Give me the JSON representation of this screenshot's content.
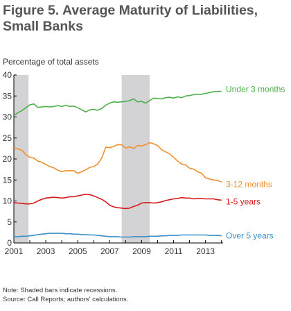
{
  "title_line1": "Figure 5. Average Maturity of Liabilities,",
  "title_line2": "Small Banks",
  "notes": [
    "Note: Shaded bars indicate recessions.",
    "Source: Call Reports; authors' calculations."
  ],
  "chart_data": {
    "type": "line",
    "title": "Figure 5. Average Maturity of Liabilities, Small Banks",
    "ylabel": "Percentage of total assets",
    "xlabel": "",
    "xlim": [
      2001,
      2014.1
    ],
    "ylim": [
      0,
      40
    ],
    "yticks": [
      0,
      5,
      10,
      15,
      20,
      25,
      30,
      35,
      40
    ],
    "xticks": [
      2001,
      2003,
      2005,
      2007,
      2009,
      2011,
      2013
    ],
    "grid": false,
    "legend": "inline labels at right end of each series",
    "recessions": [
      [
        2001.0,
        2001.92
      ],
      [
        2007.75,
        2009.5
      ]
    ],
    "series": [
      {
        "name": "Under 3 months",
        "color": "#4daf4a",
        "label_y": 36.6,
        "x": [
          2001.0,
          2001.25,
          2001.5,
          2001.75,
          2002.0,
          2002.25,
          2002.5,
          2002.75,
          2003.0,
          2003.25,
          2003.5,
          2003.75,
          2004.0,
          2004.25,
          2004.5,
          2004.75,
          2005.0,
          2005.25,
          2005.5,
          2005.75,
          2006.0,
          2006.25,
          2006.5,
          2006.75,
          2007.0,
          2007.25,
          2007.5,
          2007.75,
          2008.0,
          2008.25,
          2008.5,
          2008.75,
          2009.0,
          2009.25,
          2009.5,
          2009.75,
          2010.0,
          2010.25,
          2010.5,
          2010.75,
          2011.0,
          2011.25,
          2011.5,
          2011.75,
          2012.0,
          2012.25,
          2012.5,
          2012.75,
          2013.0,
          2013.25,
          2013.5,
          2013.75,
          2014.0
        ],
        "values": [
          30.4,
          31.0,
          31.5,
          32.2,
          32.9,
          33.1,
          32.3,
          32.4,
          32.5,
          32.4,
          32.5,
          32.7,
          32.5,
          32.8,
          32.5,
          32.6,
          32.2,
          31.7,
          31.2,
          31.7,
          31.8,
          31.6,
          32.0,
          32.8,
          33.3,
          33.6,
          33.5,
          33.6,
          33.7,
          33.9,
          34.3,
          33.6,
          33.7,
          33.3,
          33.9,
          34.5,
          34.4,
          34.3,
          34.6,
          34.7,
          34.5,
          34.8,
          34.6,
          35.0,
          35.1,
          35.3,
          35.4,
          35.4,
          35.6,
          35.8,
          36.0,
          36.1,
          36.1
        ]
      },
      {
        "name": "3-12 months",
        "color": "#f18f2b",
        "label_y": 14.0,
        "x": [
          2001.0,
          2001.25,
          2001.5,
          2001.75,
          2002.0,
          2002.25,
          2002.5,
          2002.75,
          2003.0,
          2003.25,
          2003.5,
          2003.75,
          2004.0,
          2004.25,
          2004.5,
          2004.75,
          2005.0,
          2005.25,
          2005.5,
          2005.75,
          2006.0,
          2006.25,
          2006.5,
          2006.75,
          2007.0,
          2007.25,
          2007.5,
          2007.75,
          2008.0,
          2008.25,
          2008.5,
          2008.75,
          2009.0,
          2009.25,
          2009.5,
          2009.75,
          2010.0,
          2010.25,
          2010.5,
          2010.75,
          2011.0,
          2011.25,
          2011.5,
          2011.75,
          2012.0,
          2012.25,
          2012.5,
          2012.75,
          2013.0,
          2013.25,
          2013.5,
          2013.75,
          2014.0
        ],
        "values": [
          22.7,
          22.4,
          22.1,
          21.0,
          20.4,
          20.2,
          19.5,
          19.2,
          18.7,
          18.2,
          17.9,
          17.3,
          17.0,
          17.2,
          17.2,
          17.2,
          16.6,
          17.0,
          17.4,
          18.0,
          18.2,
          18.8,
          20.2,
          22.8,
          22.7,
          23.0,
          23.4,
          23.4,
          22.6,
          22.9,
          22.5,
          23.2,
          23.1,
          23.4,
          23.9,
          23.6,
          23.2,
          22.2,
          21.7,
          21.2,
          20.4,
          19.5,
          18.8,
          18.6,
          17.8,
          17.6,
          17.0,
          16.6,
          15.5,
          15.2,
          15.0,
          14.9,
          14.5
        ]
      },
      {
        "name": "1-5 years",
        "color": "#d7191c",
        "label_y": 9.8,
        "x": [
          2001.0,
          2001.25,
          2001.5,
          2001.75,
          2002.0,
          2002.25,
          2002.5,
          2002.75,
          2003.0,
          2003.25,
          2003.5,
          2003.75,
          2004.0,
          2004.25,
          2004.5,
          2004.75,
          2005.0,
          2005.25,
          2005.5,
          2005.75,
          2006.0,
          2006.25,
          2006.5,
          2006.75,
          2007.0,
          2007.25,
          2007.5,
          2007.75,
          2008.0,
          2008.25,
          2008.5,
          2008.75,
          2009.0,
          2009.25,
          2009.5,
          2009.75,
          2010.0,
          2010.25,
          2010.5,
          2010.75,
          2011.0,
          2011.25,
          2011.5,
          2011.75,
          2012.0,
          2012.25,
          2012.5,
          2012.75,
          2013.0,
          2013.25,
          2013.5,
          2013.75,
          2014.0
        ],
        "values": [
          9.6,
          9.5,
          9.4,
          9.3,
          9.3,
          9.5,
          10.0,
          10.4,
          10.7,
          10.8,
          10.9,
          10.8,
          10.7,
          10.8,
          11.0,
          11.0,
          11.2,
          11.4,
          11.6,
          11.5,
          11.2,
          10.8,
          10.4,
          9.8,
          9.0,
          8.6,
          8.4,
          8.3,
          8.2,
          8.3,
          8.7,
          9.0,
          9.5,
          9.6,
          9.6,
          9.5,
          9.6,
          9.8,
          10.1,
          10.3,
          10.5,
          10.6,
          10.8,
          10.7,
          10.7,
          10.5,
          10.6,
          10.6,
          10.5,
          10.5,
          10.5,
          10.3,
          10.2
        ]
      },
      {
        "name": "Over 5 years",
        "color": "#3a8fc7",
        "label_y": 1.7,
        "x": [
          2001.0,
          2001.25,
          2001.5,
          2001.75,
          2002.0,
          2002.25,
          2002.5,
          2002.75,
          2003.0,
          2003.25,
          2003.5,
          2003.75,
          2004.0,
          2004.25,
          2004.5,
          2004.75,
          2005.0,
          2005.25,
          2005.5,
          2005.75,
          2006.0,
          2006.25,
          2006.5,
          2006.75,
          2007.0,
          2007.25,
          2007.5,
          2007.75,
          2008.0,
          2008.25,
          2008.5,
          2008.75,
          2009.0,
          2009.25,
          2009.5,
          2009.75,
          2010.0,
          2010.25,
          2010.5,
          2010.75,
          2011.0,
          2011.25,
          2011.5,
          2011.75,
          2012.0,
          2012.25,
          2012.5,
          2012.75,
          2013.0,
          2013.25,
          2013.5,
          2013.75,
          2014.0
        ],
        "values": [
          1.5,
          1.5,
          1.6,
          1.6,
          1.7,
          1.8,
          2.0,
          2.1,
          2.2,
          2.3,
          2.3,
          2.3,
          2.3,
          2.2,
          2.2,
          2.1,
          2.1,
          2.0,
          2.0,
          1.9,
          1.9,
          1.8,
          1.7,
          1.6,
          1.5,
          1.5,
          1.5,
          1.4,
          1.4,
          1.4,
          1.5,
          1.5,
          1.5,
          1.5,
          1.6,
          1.6,
          1.6,
          1.7,
          1.7,
          1.8,
          1.8,
          1.8,
          1.9,
          1.9,
          1.9,
          1.9,
          1.9,
          1.9,
          1.9,
          1.8,
          1.8,
          1.8,
          1.7
        ]
      }
    ]
  }
}
